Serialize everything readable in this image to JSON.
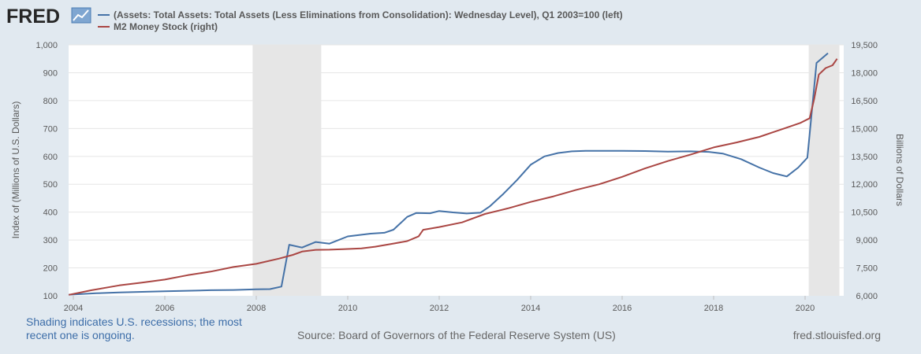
{
  "logo": {
    "text": "FRED",
    "icon": "line-chart-icon"
  },
  "chart_data": {
    "type": "line",
    "legend": [
      {
        "label": "(Assets: Total Assets: Total Assets (Less Eliminations from Consolidation): Wednesday Level), Q1 2003=100 (left)",
        "color": "#4572a7"
      },
      {
        "label": "M2 Money Stock (right)",
        "color": "#aa4643"
      }
    ],
    "ylabel_left": "Index of (Millions of U.S. Dollars)",
    "ylabel_right": "Billions of Dollars",
    "ylim_left": [
      100,
      1000
    ],
    "ylim_right": [
      6000,
      19500
    ],
    "xlim": [
      2003.9,
      2020.75
    ],
    "x_ticks": [
      "2004",
      "2006",
      "2008",
      "2010",
      "2012",
      "2014",
      "2016",
      "2018",
      "2020"
    ],
    "y_ticks_left": [
      "100",
      "200",
      "300",
      "400",
      "500",
      "600",
      "700",
      "800",
      "900",
      "1,000"
    ],
    "y_ticks_right": [
      "6,000",
      "7,500",
      "9,000",
      "10,500",
      "12,000",
      "13,500",
      "15,000",
      "16,500",
      "18,000",
      "19,500"
    ],
    "recessions": [
      [
        2007.92,
        2009.42
      ],
      [
        2020.08,
        2020.75
      ]
    ],
    "grid": true,
    "series": [
      {
        "name": "(Assets: Total Assets: Total Assets (Less Eliminations from Consolidation): Wednesday Level), Q1 2003=100 (left)",
        "axis": "left",
        "x": [
          2003.9,
          2004.5,
          2005,
          2006,
          2007,
          2007.5,
          2008,
          2008.3,
          2008.55,
          2008.72,
          2009,
          2009.3,
          2009.6,
          2010,
          2010.5,
          2010.8,
          2011,
          2011.3,
          2011.5,
          2011.8,
          2012,
          2012.3,
          2012.6,
          2012.9,
          2013.1,
          2013.4,
          2013.7,
          2014,
          2014.3,
          2014.6,
          2014.9,
          2015.2,
          2015.5,
          2016,
          2016.5,
          2017,
          2017.5,
          2017.9,
          2018.2,
          2018.6,
          2019,
          2019.3,
          2019.6,
          2019.85,
          2020.05,
          2020.25,
          2020.5
        ],
        "y": [
          104,
          109,
          112,
          116,
          120,
          121,
          123,
          124,
          133,
          283,
          273,
          293,
          287,
          313,
          323,
          326,
          337,
          383,
          397,
          396,
          404,
          399,
          395,
          398,
          420,
          465,
          515,
          570,
          600,
          612,
          618,
          620,
          620,
          620,
          619,
          617,
          618,
          616,
          610,
          590,
          560,
          540,
          528,
          560,
          595,
          935,
          970
        ]
      },
      {
        "name": "M2 Money Stock (right)",
        "axis": "right",
        "x": [
          2003.9,
          2004.4,
          2005,
          2005.5,
          2006,
          2006.5,
          2007,
          2007.5,
          2008,
          2008.5,
          2008.8,
          2009,
          2009.3,
          2009.6,
          2009.9,
          2010.3,
          2010.6,
          2011,
          2011.3,
          2011.55,
          2011.65,
          2012,
          2012.5,
          2013,
          2013.5,
          2014,
          2014.5,
          2015,
          2015.5,
          2016,
          2016.5,
          2017,
          2017.5,
          2018,
          2018.5,
          2019,
          2019.3,
          2019.6,
          2019.9,
          2020.1,
          2020.2,
          2020.3,
          2020.45,
          2020.6,
          2020.7
        ],
        "y": [
          6050,
          6300,
          6560,
          6710,
          6870,
          7110,
          7300,
          7550,
          7720,
          8000,
          8200,
          8380,
          8470,
          8480,
          8510,
          8550,
          8640,
          8810,
          8940,
          9200,
          9550,
          9700,
          9950,
          10400,
          10700,
          11050,
          11350,
          11700,
          12000,
          12400,
          12850,
          13250,
          13600,
          13980,
          14250,
          14550,
          14800,
          15050,
          15300,
          15550,
          16600,
          17900,
          18250,
          18400,
          18750
        ]
      }
    ]
  },
  "footer": {
    "note": "Shading indicates U.S. recessions; the most recent one is ongoing.",
    "source": "Source: Board of Governors of the Federal Reserve System (US)",
    "site": "fred.stlouisfed.org"
  }
}
